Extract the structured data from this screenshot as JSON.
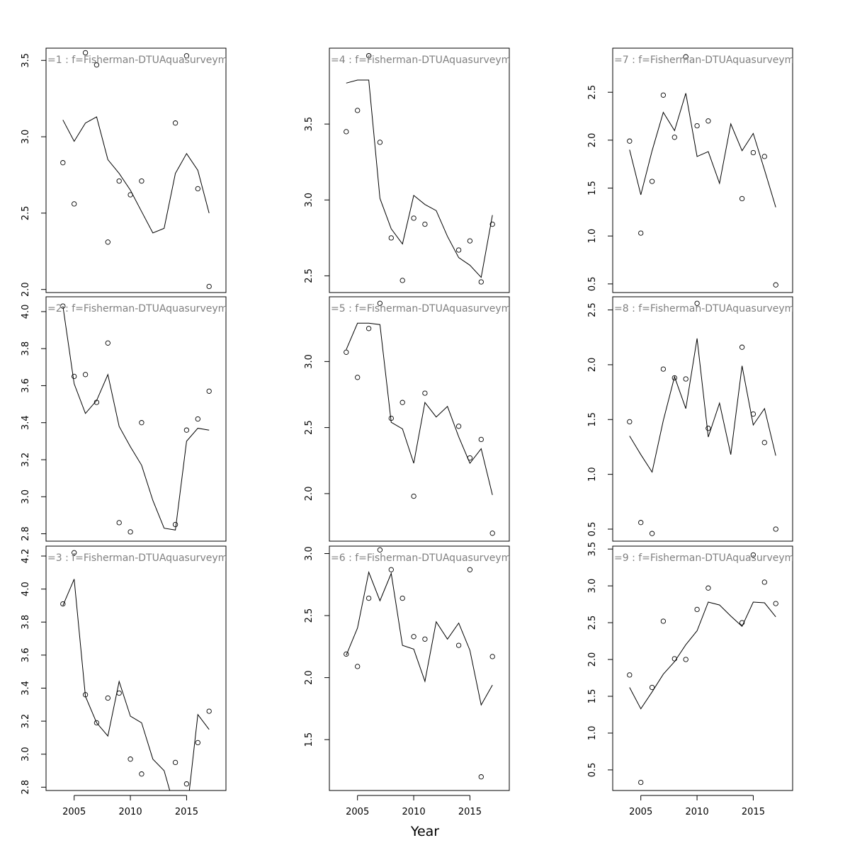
{
  "figure": {
    "xlabel": "Year"
  },
  "chart_data": [
    {
      "type": "scatter",
      "panel_label": "=1  :  f=Fisherman-DTUAquasurveyme",
      "xlim": [
        2002.5,
        2018.5
      ],
      "ylim": [
        1.98,
        3.58
      ],
      "xticks": [],
      "yticks": [
        "2.0",
        "2.5",
        "3.0",
        "3.5"
      ],
      "points": [
        [
          2004,
          2.83
        ],
        [
          2005,
          2.56
        ],
        [
          2006,
          3.55
        ],
        [
          2007,
          3.47
        ],
        [
          2008,
          2.31
        ],
        [
          2009,
          2.71
        ],
        [
          2010,
          2.62
        ],
        [
          2011,
          2.71
        ],
        [
          2014,
          3.09
        ],
        [
          2015,
          3.53
        ],
        [
          2016,
          2.66
        ],
        [
          2017,
          2.02
        ]
      ],
      "line": [
        [
          2004,
          3.11
        ],
        [
          2005,
          2.97
        ],
        [
          2006,
          3.09
        ],
        [
          2007,
          3.13
        ],
        [
          2008,
          2.85
        ],
        [
          2009,
          2.76
        ],
        [
          2010,
          2.65
        ],
        [
          2011,
          2.51
        ],
        [
          2012,
          2.37
        ],
        [
          2013,
          2.4
        ],
        [
          2014,
          2.76
        ],
        [
          2015,
          2.89
        ],
        [
          2016,
          2.78
        ],
        [
          2017,
          2.5
        ]
      ]
    },
    {
      "type": "scatter",
      "panel_label": "=2  :  f=Fisherman-DTUAquasurveyme",
      "xlim": [
        2002.5,
        2018.5
      ],
      "ylim": [
        2.76,
        4.08
      ],
      "xticks": [],
      "yticks": [
        "2.8",
        "3.0",
        "3.2",
        "3.4",
        "3.6",
        "3.8",
        "4.0"
      ],
      "points": [
        [
          2004,
          4.03
        ],
        [
          2005,
          3.65
        ],
        [
          2006,
          3.66
        ],
        [
          2007,
          3.51
        ],
        [
          2008,
          3.83
        ],
        [
          2009,
          2.86
        ],
        [
          2010,
          2.81
        ],
        [
          2011,
          3.4
        ],
        [
          2014,
          2.85
        ],
        [
          2015,
          3.36
        ],
        [
          2016,
          3.42
        ],
        [
          2017,
          3.57
        ]
      ],
      "line": [
        [
          2004,
          4.03
        ],
        [
          2005,
          3.61
        ],
        [
          2006,
          3.45
        ],
        [
          2007,
          3.52
        ],
        [
          2008,
          3.66
        ],
        [
          2009,
          3.38
        ],
        [
          2010,
          3.27
        ],
        [
          2011,
          3.17
        ],
        [
          2012,
          2.98
        ],
        [
          2013,
          2.83
        ],
        [
          2014,
          2.82
        ],
        [
          2015,
          3.3
        ],
        [
          2016,
          3.37
        ],
        [
          2017,
          3.36
        ]
      ]
    },
    {
      "type": "scatter",
      "panel_label": "=3  :  f=Fisherman-DTUAquasurveyme",
      "xlim": [
        2002.5,
        2018.5
      ],
      "ylim": [
        2.78,
        4.26
      ],
      "xticks": [
        "2005",
        "2010",
        "2015"
      ],
      "yticks": [
        "2.8",
        "3.0",
        "3.2",
        "3.4",
        "3.6",
        "3.8",
        "4.0",
        "4.2"
      ],
      "points": [
        [
          2004,
          3.91
        ],
        [
          2005,
          4.22
        ],
        [
          2006,
          3.36
        ],
        [
          2007,
          3.19
        ],
        [
          2008,
          3.34
        ],
        [
          2009,
          3.37
        ],
        [
          2010,
          2.97
        ],
        [
          2011,
          2.88
        ],
        [
          2014,
          2.95
        ],
        [
          2015,
          2.82
        ],
        [
          2016,
          3.07
        ],
        [
          2017,
          3.26
        ]
      ],
      "line": [
        [
          2004,
          3.9
        ],
        [
          2005,
          4.06
        ],
        [
          2006,
          3.35
        ],
        [
          2007,
          3.19
        ],
        [
          2008,
          3.11
        ],
        [
          2009,
          3.44
        ],
        [
          2010,
          3.23
        ],
        [
          2011,
          3.19
        ],
        [
          2012,
          2.97
        ],
        [
          2013,
          2.9
        ],
        [
          2014,
          2.66
        ],
        [
          2015,
          2.63
        ],
        [
          2016,
          3.24
        ],
        [
          2017,
          3.15
        ]
      ]
    },
    {
      "type": "scatter",
      "panel_label": "=4  :  f=Fisherman-DTUAquasurveyme",
      "xlim": [
        2002.5,
        2018.5
      ],
      "ylim": [
        2.39,
        4.0
      ],
      "xticks": [],
      "yticks": [
        "2.5",
        "3.0",
        "3.5"
      ],
      "points": [
        [
          2004,
          3.45
        ],
        [
          2005,
          3.59
        ],
        [
          2006,
          3.95
        ],
        [
          2007,
          3.38
        ],
        [
          2008,
          2.75
        ],
        [
          2009,
          2.47
        ],
        [
          2010,
          2.88
        ],
        [
          2011,
          2.84
        ],
        [
          2014,
          2.67
        ],
        [
          2015,
          2.73
        ],
        [
          2016,
          2.46
        ],
        [
          2017,
          2.84
        ]
      ],
      "line": [
        [
          2004,
          3.77
        ],
        [
          2005,
          3.79
        ],
        [
          2006,
          3.79
        ],
        [
          2007,
          3.01
        ],
        [
          2008,
          2.81
        ],
        [
          2009,
          2.71
        ],
        [
          2010,
          3.03
        ],
        [
          2011,
          2.97
        ],
        [
          2012,
          2.93
        ],
        [
          2013,
          2.76
        ],
        [
          2014,
          2.62
        ],
        [
          2015,
          2.57
        ],
        [
          2016,
          2.49
        ],
        [
          2017,
          2.9
        ]
      ]
    },
    {
      "type": "scatter",
      "panel_label": "=5  :  f=Fisherman-DTUAquasurveyme",
      "xlim": [
        2002.5,
        2018.5
      ],
      "ylim": [
        1.64,
        3.49
      ],
      "xticks": [],
      "yticks": [
        "2.0",
        "2.5",
        "3.0"
      ],
      "points": [
        [
          2004,
          3.07
        ],
        [
          2005,
          2.88
        ],
        [
          2006,
          3.25
        ],
        [
          2007,
          3.44
        ],
        [
          2008,
          2.57
        ],
        [
          2009,
          2.69
        ],
        [
          2010,
          1.98
        ],
        [
          2011,
          2.76
        ],
        [
          2014,
          2.51
        ],
        [
          2015,
          2.27
        ],
        [
          2016,
          2.41
        ],
        [
          2017,
          1.7
        ]
      ],
      "line": [
        [
          2004,
          3.09
        ],
        [
          2005,
          3.29
        ],
        [
          2006,
          3.29
        ],
        [
          2007,
          3.28
        ],
        [
          2008,
          2.54
        ],
        [
          2009,
          2.49
        ],
        [
          2010,
          2.23
        ],
        [
          2011,
          2.69
        ],
        [
          2012,
          2.58
        ],
        [
          2013,
          2.66
        ],
        [
          2014,
          2.43
        ],
        [
          2015,
          2.23
        ],
        [
          2016,
          2.34
        ],
        [
          2017,
          1.99
        ]
      ]
    },
    {
      "type": "scatter",
      "panel_label": "=6  :  f=Fisherman-DTUAquasurveyme",
      "xlim": [
        2002.5,
        2018.5
      ],
      "ylim": [
        1.09,
        3.06
      ],
      "xticks": [
        "2005",
        "2010",
        "2015"
      ],
      "yticks": [
        "1.5",
        "2.0",
        "2.5",
        "3.0"
      ],
      "points": [
        [
          2004,
          2.19
        ],
        [
          2005,
          2.09
        ],
        [
          2006,
          2.64
        ],
        [
          2007,
          3.03
        ],
        [
          2008,
          2.87
        ],
        [
          2009,
          2.64
        ],
        [
          2010,
          2.33
        ],
        [
          2011,
          2.31
        ],
        [
          2014,
          2.26
        ],
        [
          2015,
          2.87
        ],
        [
          2016,
          1.2
        ],
        [
          2017,
          2.17
        ]
      ],
      "line": [
        [
          2004,
          2.18
        ],
        [
          2005,
          2.4
        ],
        [
          2006,
          2.85
        ],
        [
          2007,
          2.62
        ],
        [
          2008,
          2.84
        ],
        [
          2009,
          2.26
        ],
        [
          2010,
          2.23
        ],
        [
          2011,
          1.97
        ],
        [
          2012,
          2.45
        ],
        [
          2013,
          2.31
        ],
        [
          2014,
          2.44
        ],
        [
          2015,
          2.22
        ],
        [
          2016,
          1.78
        ],
        [
          2017,
          1.94
        ]
      ]
    },
    {
      "type": "scatter",
      "panel_label": "=7  :  f=Fisherman-DTUAquasurveyme",
      "xlim": [
        2002.5,
        2018.5
      ],
      "ylim": [
        0.41,
        2.96
      ],
      "xticks": [],
      "yticks": [
        "0.5",
        "1.0",
        "1.5",
        "2.0",
        "2.5"
      ],
      "points": [
        [
          2004,
          1.99
        ],
        [
          2005,
          1.03
        ],
        [
          2006,
          1.57
        ],
        [
          2007,
          2.47
        ],
        [
          2008,
          2.03
        ],
        [
          2009,
          2.87
        ],
        [
          2010,
          2.15
        ],
        [
          2011,
          2.2
        ],
        [
          2014,
          1.39
        ],
        [
          2015,
          1.87
        ],
        [
          2016,
          1.83
        ],
        [
          2017,
          0.49
        ]
      ],
      "line": [
        [
          2004,
          1.9
        ],
        [
          2005,
          1.43
        ],
        [
          2006,
          1.89
        ],
        [
          2007,
          2.29
        ],
        [
          2008,
          2.1
        ],
        [
          2009,
          2.49
        ],
        [
          2010,
          1.83
        ],
        [
          2011,
          1.88
        ],
        [
          2012,
          1.55
        ],
        [
          2013,
          2.17
        ],
        [
          2014,
          1.89
        ],
        [
          2015,
          2.07
        ],
        [
          2016,
          1.69
        ],
        [
          2017,
          1.3
        ]
      ]
    },
    {
      "type": "scatter",
      "panel_label": "=8  :  f=Fisherman-DTUAquasurveyme",
      "xlim": [
        2002.5,
        2018.5
      ],
      "ylim": [
        0.39,
        2.62
      ],
      "xticks": [],
      "yticks": [
        "0.5",
        "1.0",
        "1.5",
        "2.0",
        "2.5"
      ],
      "points": [
        [
          2004,
          1.48
        ],
        [
          2005,
          0.56
        ],
        [
          2006,
          0.46
        ],
        [
          2007,
          1.96
        ],
        [
          2008,
          1.88
        ],
        [
          2009,
          1.87
        ],
        [
          2010,
          2.56
        ],
        [
          2011,
          1.42
        ],
        [
          2014,
          2.16
        ],
        [
          2015,
          1.55
        ],
        [
          2016,
          1.29
        ],
        [
          2017,
          0.5
        ]
      ],
      "line": [
        [
          2004,
          1.35
        ],
        [
          2005,
          1.18
        ],
        [
          2006,
          1.02
        ],
        [
          2007,
          1.49
        ],
        [
          2008,
          1.89
        ],
        [
          2009,
          1.6
        ],
        [
          2010,
          2.24
        ],
        [
          2011,
          1.34
        ],
        [
          2012,
          1.65
        ],
        [
          2013,
          1.18
        ],
        [
          2014,
          1.99
        ],
        [
          2015,
          1.45
        ],
        [
          2016,
          1.6
        ],
        [
          2017,
          1.17
        ]
      ]
    },
    {
      "type": "scatter",
      "panel_label": "=9  :  f=Fisherman-DTUAquasurveyme",
      "xlim": [
        2002.5,
        2018.5
      ],
      "ylim": [
        0.22,
        3.54
      ],
      "xticks": [
        "2005",
        "2010",
        "2015"
      ],
      "yticks": [
        "0.5",
        "1.0",
        "1.5",
        "2.0",
        "2.5",
        "3.0",
        "3.5"
      ],
      "points": [
        [
          2004,
          1.79
        ],
        [
          2005,
          0.33
        ],
        [
          2006,
          1.62
        ],
        [
          2007,
          2.52
        ],
        [
          2008,
          2.01
        ],
        [
          2009,
          2.0
        ],
        [
          2010,
          2.68
        ],
        [
          2011,
          2.97
        ],
        [
          2014,
          2.5
        ],
        [
          2015,
          3.42
        ],
        [
          2016,
          3.05
        ],
        [
          2017,
          2.76
        ]
      ],
      "line": [
        [
          2004,
          1.62
        ],
        [
          2005,
          1.33
        ],
        [
          2006,
          1.56
        ],
        [
          2007,
          1.8
        ],
        [
          2008,
          1.97
        ],
        [
          2009,
          2.2
        ],
        [
          2010,
          2.39
        ],
        [
          2011,
          2.78
        ],
        [
          2012,
          2.74
        ],
        [
          2013,
          2.59
        ],
        [
          2014,
          2.45
        ],
        [
          2015,
          2.78
        ],
        [
          2016,
          2.77
        ],
        [
          2017,
          2.58
        ]
      ]
    }
  ]
}
